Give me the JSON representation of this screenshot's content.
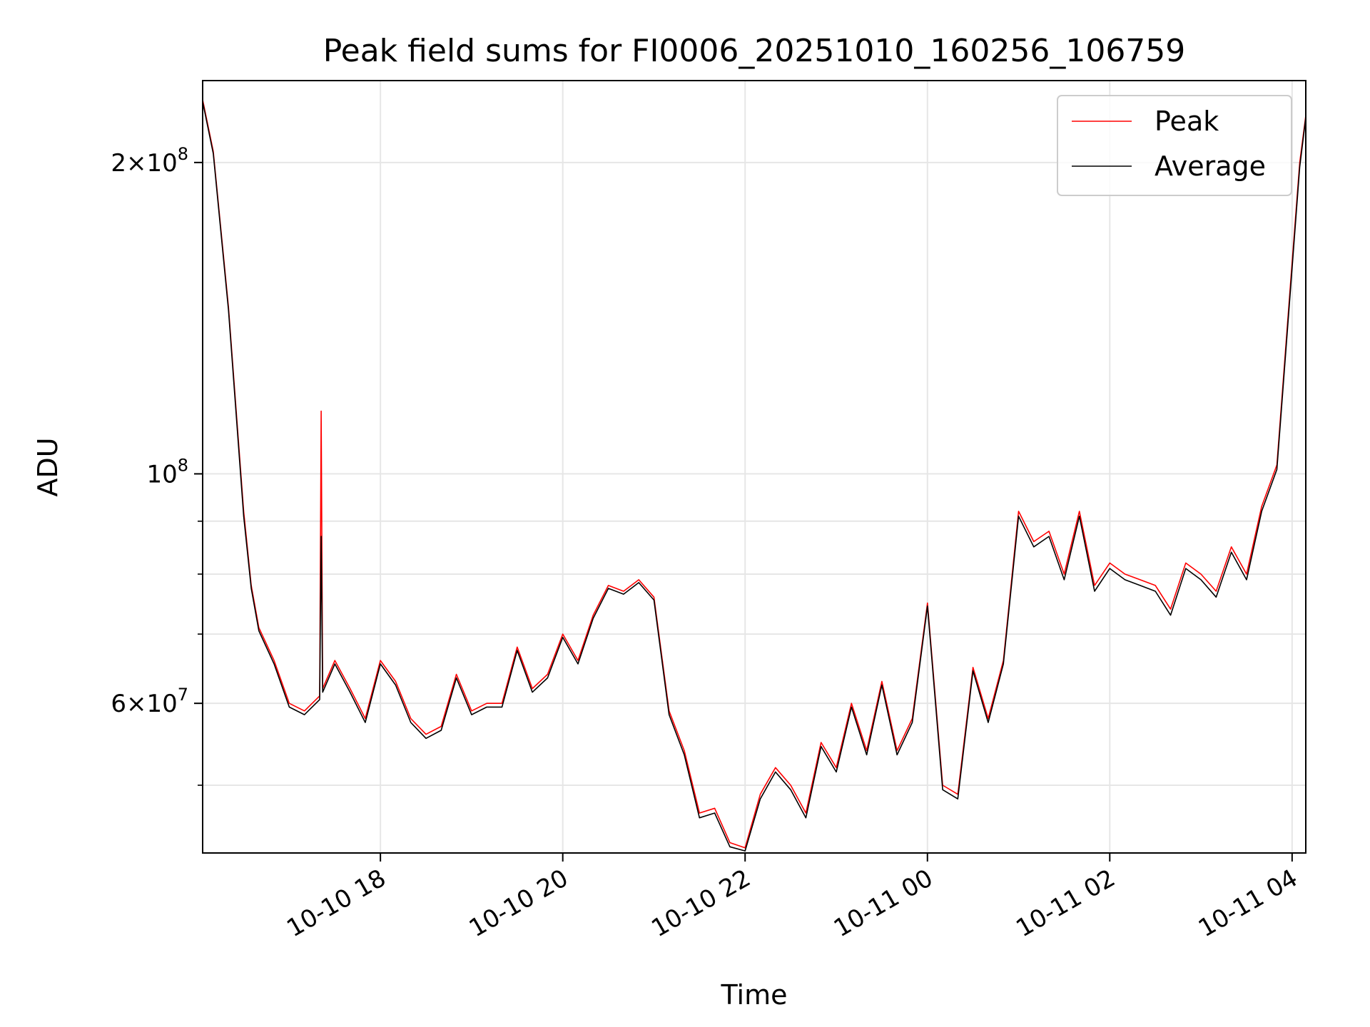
{
  "chart_data": {
    "type": "line",
    "title": "Peak field sums for FI0006_20251010_160256_106759",
    "xlabel": "Time",
    "ylabel": "ADU",
    "y_scale": "log",
    "ylim": [
      43000000,
      240000000
    ],
    "xlim": [
      "2025-10-10 16:03",
      "2025-10-11 04:09"
    ],
    "grid": true,
    "legend_position": "upper right",
    "x_ticks": [
      {
        "time": "2025-10-10 18:00",
        "label": "10-10 18"
      },
      {
        "time": "2025-10-10 20:00",
        "label": "10-10 20"
      },
      {
        "time": "2025-10-10 22:00",
        "label": "10-10 22"
      },
      {
        "time": "2025-10-11 00:00",
        "label": "10-11 00"
      },
      {
        "time": "2025-10-11 02:00",
        "label": "10-11 02"
      },
      {
        "time": "2025-10-11 04:00",
        "label": "10-11 04"
      }
    ],
    "y_major_ticks": [
      {
        "value": 60000000,
        "mantissa": "6",
        "exp": "7"
      },
      {
        "value": 100000000,
        "mantissa": "",
        "exp": "8"
      },
      {
        "value": 200000000,
        "mantissa": "2",
        "exp": "8"
      }
    ],
    "y_minor_ticks": [
      50000000,
      70000000,
      80000000,
      90000000
    ],
    "series": [
      {
        "name": "Peak",
        "color": "#ff0000",
        "x": [
          "2025-10-10 16:03",
          "2025-10-10 16:10",
          "2025-10-10 16:20",
          "2025-10-10 16:30",
          "2025-10-10 16:35",
          "2025-10-10 16:40",
          "2025-10-10 16:50",
          "2025-10-10 17:00",
          "2025-10-10 17:10",
          "2025-10-10 17:20",
          "2025-10-10 17:21",
          "2025-10-10 17:22",
          "2025-10-10 17:30",
          "2025-10-10 17:40",
          "2025-10-10 17:50",
          "2025-10-10 18:00",
          "2025-10-10 18:10",
          "2025-10-10 18:20",
          "2025-10-10 18:30",
          "2025-10-10 18:40",
          "2025-10-10 18:50",
          "2025-10-10 19:00",
          "2025-10-10 19:10",
          "2025-10-10 19:20",
          "2025-10-10 19:30",
          "2025-10-10 19:40",
          "2025-10-10 19:50",
          "2025-10-10 20:00",
          "2025-10-10 20:10",
          "2025-10-10 20:20",
          "2025-10-10 20:30",
          "2025-10-10 20:40",
          "2025-10-10 20:50",
          "2025-10-10 21:00",
          "2025-10-10 21:10",
          "2025-10-10 21:20",
          "2025-10-10 21:30",
          "2025-10-10 21:40",
          "2025-10-10 21:50",
          "2025-10-10 22:00",
          "2025-10-10 22:10",
          "2025-10-10 22:20",
          "2025-10-10 22:30",
          "2025-10-10 22:40",
          "2025-10-10 22:50",
          "2025-10-10 23:00",
          "2025-10-10 23:10",
          "2025-10-10 23:20",
          "2025-10-10 23:30",
          "2025-10-10 23:40",
          "2025-10-10 23:50",
          "2025-10-11 00:00",
          "2025-10-11 00:10",
          "2025-10-11 00:20",
          "2025-10-11 00:30",
          "2025-10-11 00:40",
          "2025-10-11 00:50",
          "2025-10-11 01:00",
          "2025-10-11 01:10",
          "2025-10-11 01:20",
          "2025-10-11 01:30",
          "2025-10-11 01:40",
          "2025-10-11 01:50",
          "2025-10-11 02:00",
          "2025-10-11 02:10",
          "2025-10-11 02:20",
          "2025-10-11 02:30",
          "2025-10-11 02:40",
          "2025-10-11 02:50",
          "2025-10-11 03:00",
          "2025-10-11 03:10",
          "2025-10-11 03:20",
          "2025-10-11 03:30",
          "2025-10-11 03:40",
          "2025-10-11 03:50",
          "2025-10-11 04:00",
          "2025-10-11 04:05",
          "2025-10-11 04:09"
        ],
        "y": [
          230000000,
          205000000,
          145000000,
          92000000,
          78000000,
          71000000,
          66000000,
          60000000,
          59000000,
          61000000,
          115000000,
          62000000,
          66000000,
          62000000,
          58000000,
          66000000,
          63000000,
          58000000,
          56000000,
          57000000,
          64000000,
          59000000,
          60000000,
          60000000,
          68000000,
          62000000,
          64000000,
          70000000,
          66000000,
          73000000,
          78000000,
          77000000,
          79000000,
          76000000,
          59000000,
          54000000,
          47000000,
          47500000,
          44000000,
          43500000,
          49000000,
          52000000,
          50000000,
          47000000,
          55000000,
          52000000,
          60000000,
          54000000,
          63000000,
          54000000,
          58000000,
          75000000,
          50000000,
          49000000,
          65000000,
          58000000,
          66000000,
          92000000,
          86000000,
          88000000,
          80000000,
          92000000,
          78000000,
          82000000,
          80000000,
          79000000,
          78000000,
          74000000,
          82000000,
          80000000,
          77000000,
          85000000,
          80000000,
          93000000,
          102000000,
          160000000,
          200000000,
          222000000
        ]
      },
      {
        "name": "Average",
        "color": "#000000",
        "x": [
          "2025-10-10 16:03",
          "2025-10-10 16:10",
          "2025-10-10 16:20",
          "2025-10-10 16:30",
          "2025-10-10 16:35",
          "2025-10-10 16:40",
          "2025-10-10 16:50",
          "2025-10-10 17:00",
          "2025-10-10 17:10",
          "2025-10-10 17:20",
          "2025-10-10 17:21",
          "2025-10-10 17:22",
          "2025-10-10 17:30",
          "2025-10-10 17:40",
          "2025-10-10 17:50",
          "2025-10-10 18:00",
          "2025-10-10 18:10",
          "2025-10-10 18:20",
          "2025-10-10 18:30",
          "2025-10-10 18:40",
          "2025-10-10 18:50",
          "2025-10-10 19:00",
          "2025-10-10 19:10",
          "2025-10-10 19:20",
          "2025-10-10 19:30",
          "2025-10-10 19:40",
          "2025-10-10 19:50",
          "2025-10-10 20:00",
          "2025-10-10 20:10",
          "2025-10-10 20:20",
          "2025-10-10 20:30",
          "2025-10-10 20:40",
          "2025-10-10 20:50",
          "2025-10-10 21:00",
          "2025-10-10 21:10",
          "2025-10-10 21:20",
          "2025-10-10 21:30",
          "2025-10-10 21:40",
          "2025-10-10 21:50",
          "2025-10-10 22:00",
          "2025-10-10 22:10",
          "2025-10-10 22:20",
          "2025-10-10 22:30",
          "2025-10-10 22:40",
          "2025-10-10 22:50",
          "2025-10-10 23:00",
          "2025-10-10 23:10",
          "2025-10-10 23:20",
          "2025-10-10 23:30",
          "2025-10-10 23:40",
          "2025-10-10 23:50",
          "2025-10-11 00:00",
          "2025-10-11 00:10",
          "2025-10-11 00:20",
          "2025-10-11 00:30",
          "2025-10-11 00:40",
          "2025-10-11 00:50",
          "2025-10-11 01:00",
          "2025-10-11 01:10",
          "2025-10-11 01:20",
          "2025-10-11 01:30",
          "2025-10-11 01:40",
          "2025-10-11 01:50",
          "2025-10-11 02:00",
          "2025-10-11 02:10",
          "2025-10-11 02:20",
          "2025-10-11 02:30",
          "2025-10-11 02:40",
          "2025-10-11 02:50",
          "2025-10-11 03:00",
          "2025-10-11 03:10",
          "2025-10-11 03:20",
          "2025-10-11 03:30",
          "2025-10-11 03:40",
          "2025-10-11 03:50",
          "2025-10-11 04:00",
          "2025-10-11 04:05",
          "2025-10-11 04:09"
        ],
        "y": [
          229000000,
          204000000,
          144000000,
          91000000,
          77500000,
          70500000,
          65500000,
          59500000,
          58500000,
          60500000,
          87000000,
          61500000,
          65500000,
          61500000,
          57500000,
          65500000,
          62500000,
          57500000,
          55500000,
          56500000,
          63500000,
          58500000,
          59500000,
          59500000,
          67500000,
          61500000,
          63500000,
          69500000,
          65500000,
          72500000,
          77500000,
          76500000,
          78500000,
          75500000,
          58500000,
          53500000,
          46500000,
          47000000,
          43600000,
          43200000,
          48500000,
          51500000,
          49500000,
          46500000,
          54500000,
          51500000,
          59500000,
          53500000,
          62500000,
          53500000,
          57500000,
          74500000,
          49500000,
          48500000,
          64500000,
          57500000,
          65500000,
          91000000,
          85000000,
          87000000,
          79000000,
          91000000,
          77000000,
          81000000,
          79000000,
          78000000,
          77000000,
          73000000,
          81000000,
          79000000,
          76000000,
          84000000,
          79000000,
          92000000,
          101000000,
          158000000,
          198000000,
          221000000
        ]
      }
    ]
  }
}
